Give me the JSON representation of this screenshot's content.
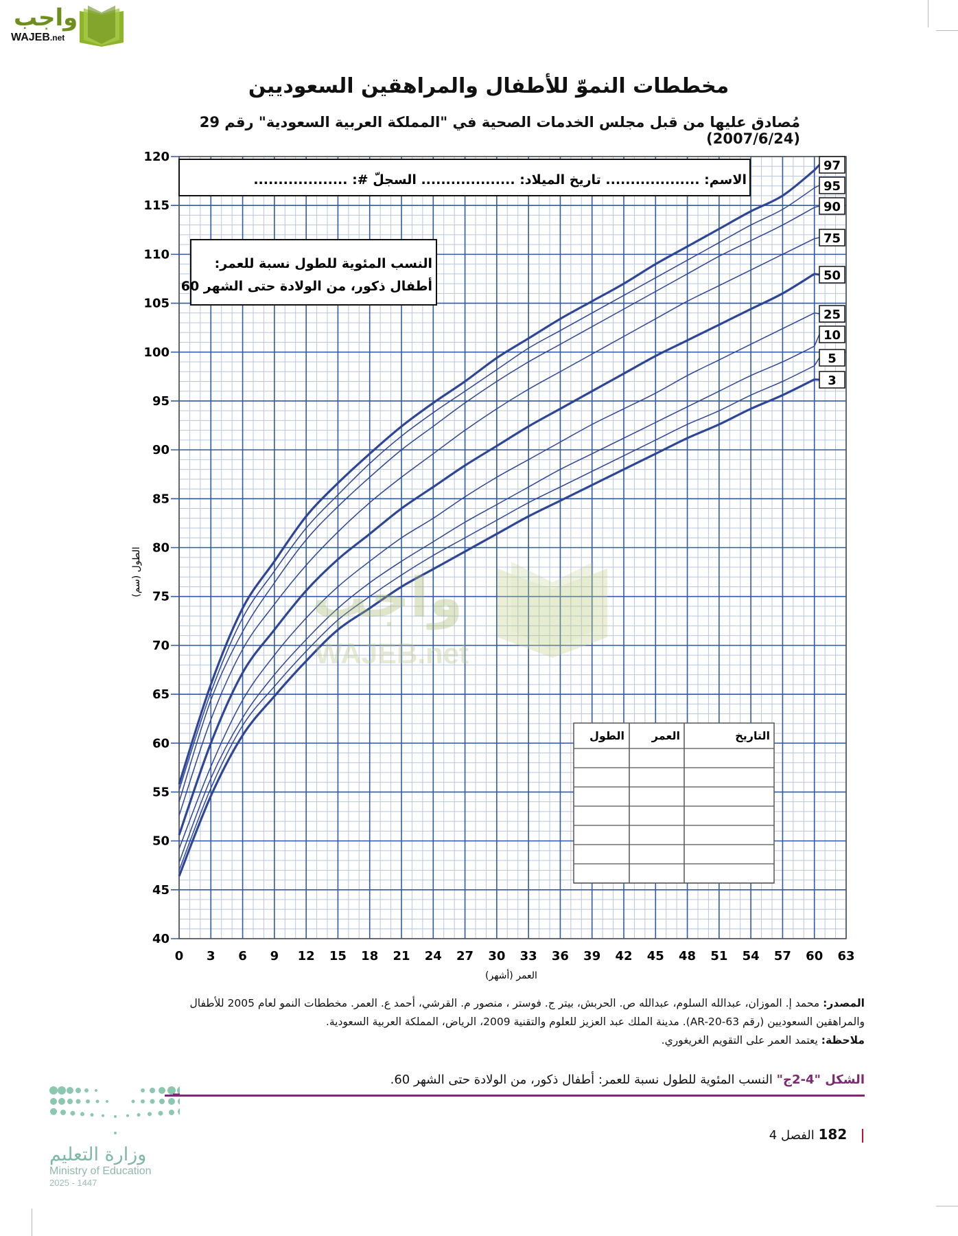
{
  "header": {
    "logo_arabic": "واجب",
    "logo_english": "WAJEB",
    "logo_suffix": ".net"
  },
  "title": "مخططات النموّ للأطفال والمراهقين السعوديين",
  "subtitle": "مُصادق عليها من قبل مجلس الخدمات الصحية في \"المملكة العربية السعودية\" رقم 29 (2007/6/24)",
  "form_box": {
    "text": "الاسم: ................... تاريخ الميلاد: ................... السجلّ #: ..................."
  },
  "legend_box": {
    "line1": "النسب المئوية للطول نسبة للعمر:",
    "line2": "أطفال ذكور، من الولادة حتى الشهر 60"
  },
  "record_table": {
    "headers": [
      "التاريخ",
      "العمر",
      "الطول"
    ],
    "empty_rows": 7
  },
  "chart_data": {
    "type": "line",
    "title": "النسب المئوية للطول نسبة للعمر: أطفال ذكور، من الولادة حتى الشهر 60",
    "xlabel": "العمر (أشهر)",
    "ylabel": "الطول (سم)",
    "xlim": [
      0,
      63
    ],
    "ylim": [
      40,
      120
    ],
    "x_ticks": [
      0,
      3,
      6,
      9,
      12,
      15,
      18,
      21,
      24,
      27,
      30,
      33,
      36,
      39,
      42,
      45,
      48,
      51,
      54,
      57,
      60,
      63
    ],
    "y_ticks": [
      40,
      45,
      50,
      55,
      60,
      65,
      70,
      75,
      80,
      85,
      90,
      95,
      100,
      105,
      110,
      115,
      120
    ],
    "grid": true,
    "legend_position": "right-end labels",
    "x": [
      0,
      3,
      6,
      9,
      12,
      15,
      18,
      21,
      24,
      27,
      30,
      33,
      36,
      39,
      42,
      45,
      48,
      51,
      54,
      57,
      60
    ],
    "series": [
      {
        "name": "97",
        "bold": true,
        "values": [
          55.8,
          66.0,
          73.8,
          78.6,
          83.2,
          86.6,
          89.6,
          92.4,
          94.8,
          97.0,
          99.4,
          101.4,
          103.4,
          105.2,
          107.0,
          109.0,
          110.8,
          112.6,
          114.4,
          116.0,
          118.6
        ]
      },
      {
        "name": "95",
        "bold": false,
        "values": [
          55.2,
          65.2,
          72.8,
          77.6,
          82.0,
          85.4,
          88.6,
          91.4,
          93.8,
          96.0,
          98.2,
          100.4,
          102.2,
          104.0,
          105.8,
          107.6,
          109.4,
          111.2,
          113.0,
          114.6,
          116.8
        ]
      },
      {
        "name": "90",
        "bold": false,
        "values": [
          54.0,
          64.4,
          71.4,
          76.4,
          80.8,
          84.2,
          87.2,
          90.0,
          92.4,
          94.8,
          97.0,
          99.0,
          100.8,
          102.6,
          104.4,
          106.2,
          108.0,
          109.8,
          111.4,
          113.0,
          114.8
        ]
      },
      {
        "name": "75",
        "bold": false,
        "values": [
          52.6,
          62.4,
          69.6,
          74.2,
          78.2,
          81.6,
          84.6,
          87.2,
          89.6,
          92.0,
          94.2,
          96.2,
          98.0,
          99.8,
          101.6,
          103.4,
          105.2,
          106.8,
          108.4,
          110.0,
          111.6
        ]
      },
      {
        "name": "50",
        "bold": true,
        "values": [
          50.6,
          60.0,
          67.2,
          71.6,
          75.6,
          78.8,
          81.4,
          84.0,
          86.2,
          88.4,
          90.4,
          92.4,
          94.2,
          96.0,
          97.8,
          99.6,
          101.2,
          102.8,
          104.4,
          106.0,
          108.0
        ]
      },
      {
        "name": "25",
        "bold": false,
        "values": [
          49.2,
          57.6,
          64.4,
          69.0,
          72.8,
          76.0,
          78.6,
          81.0,
          83.0,
          85.2,
          87.2,
          89.0,
          90.8,
          92.6,
          94.2,
          95.8,
          97.6,
          99.2,
          100.8,
          102.4,
          104.0
        ]
      },
      {
        "name": "10",
        "bold": false,
        "values": [
          47.8,
          56.4,
          62.6,
          67.0,
          70.6,
          73.8,
          76.4,
          78.6,
          80.6,
          82.6,
          84.4,
          86.2,
          88.0,
          89.6,
          91.2,
          92.8,
          94.4,
          96.0,
          97.6,
          99.0,
          100.6
        ]
      },
      {
        "name": "5",
        "bold": false,
        "values": [
          47.0,
          55.4,
          61.8,
          65.8,
          69.4,
          72.6,
          75.0,
          77.2,
          79.2,
          81.0,
          82.8,
          84.6,
          86.2,
          87.8,
          89.4,
          91.0,
          92.6,
          94.0,
          95.6,
          97.0,
          98.6
        ]
      },
      {
        "name": "3",
        "bold": true,
        "values": [
          46.4,
          54.6,
          60.8,
          64.8,
          68.4,
          71.6,
          73.8,
          76.0,
          77.8,
          79.6,
          81.4,
          83.2,
          84.8,
          86.4,
          88.0,
          89.6,
          91.2,
          92.6,
          94.2,
          95.6,
          97.2
        ]
      }
    ]
  },
  "source": {
    "label": "المصدر:",
    "text": "محمد إ. الموزان، عبدالله السلوم، عبدالله ص. الحربش، بيتر ج. فوستر ، منصور م. القرشي، أحمد ع. العمر. مخططات النمو لعام 2005 للأطفال والمراهقين السعوديين (رقم AR-20-63). مدينة الملك عبد العزيز للعلوم والتقنية 2009، الرياض، المملكة العربية السعودية.",
    "note_label": "ملاحظة:",
    "note_text": "يعتمد العمر على التقويم الغريغوري."
  },
  "caption": {
    "label": "الشكل \"4-2ج\"",
    "text": "النسب المئوية للطول نسبة للعمر: أطفال ذكور، من الولادة حتى الشهر 60."
  },
  "footer": {
    "page_number": "182",
    "chapter": "الفصل 4",
    "ministry_ar": "وزارة التعليم",
    "ministry_en": "Ministry of Education",
    "year": "2025 - 1447"
  },
  "colors": {
    "grid_major": "#2f5aa8",
    "grid_minor": "#b9c6dd",
    "curve": "#2e4696",
    "caption_accent": "#7b2a6f",
    "logo_green": "#6e8f1e"
  }
}
